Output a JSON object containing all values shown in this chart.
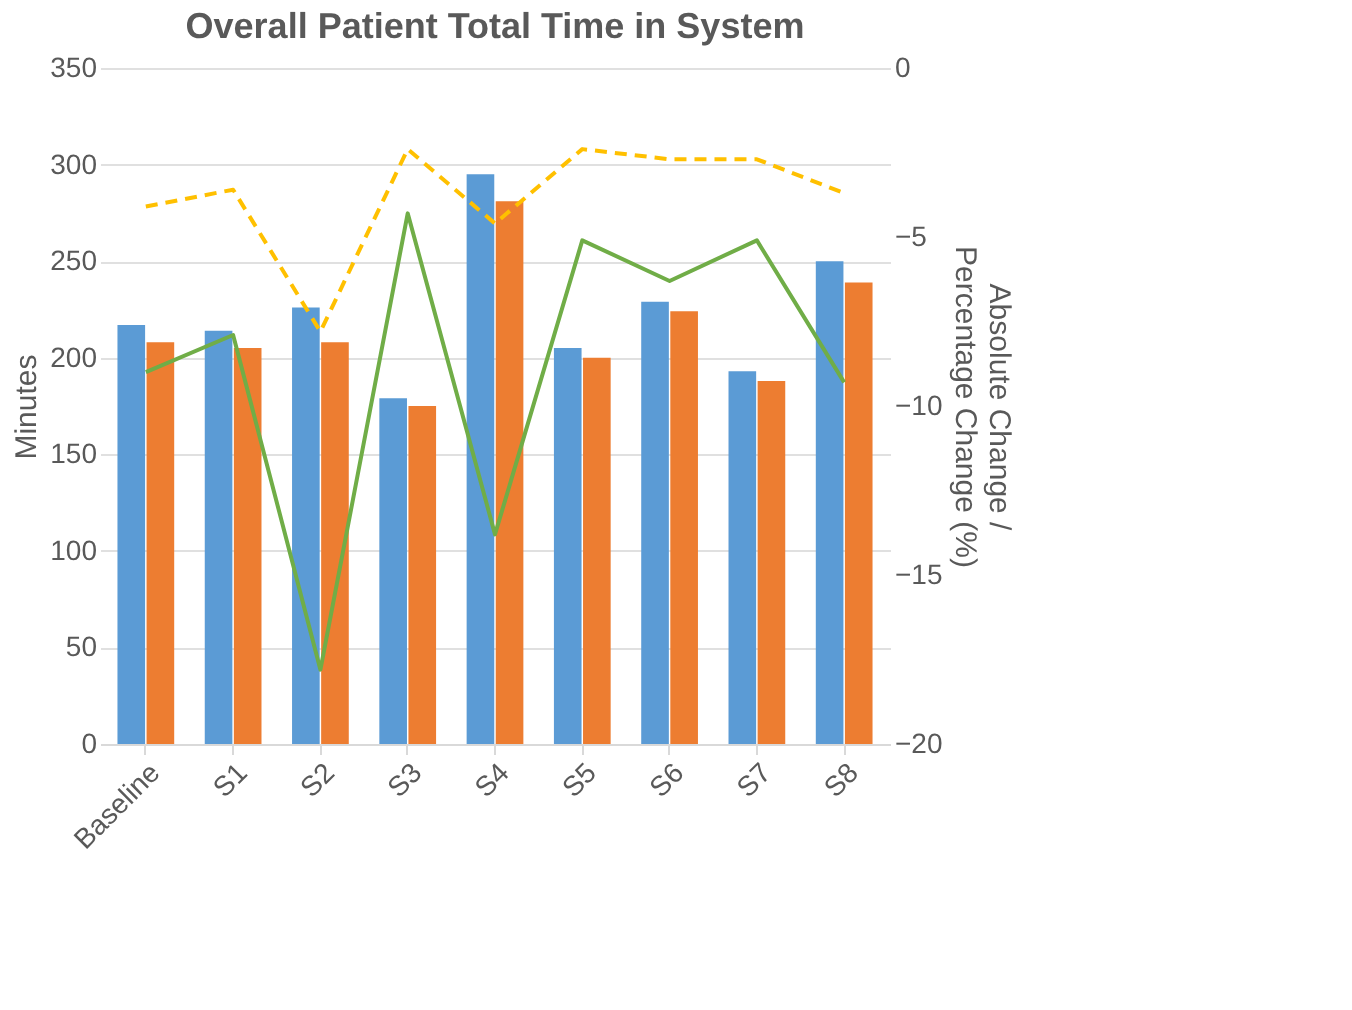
{
  "chart_data": {
    "type": "bar",
    "title": "Overall Patient Total Time in System",
    "ylabel": "Minutes",
    "y2label": [
      "Absolute Change /",
      "Percentage Change (%)"
    ],
    "categories": [
      "Baseline",
      "S1",
      "S2",
      "S3",
      "S4",
      "S5",
      "S6",
      "S7",
      "S8"
    ],
    "series": [
      {
        "color": "#5b9bd5",
        "values": [
          217,
          214,
          226,
          179,
          295,
          205,
          229,
          193,
          250
        ]
      },
      {
        "color": "#ed7d31",
        "values": [
          208,
          205,
          208,
          175,
          281,
          200,
          224,
          188,
          239
        ]
      },
      {
        "type": "line",
        "axis": "y2",
        "color": "#70ad47",
        "line_style": "solid",
        "values": [
          -9.0,
          -7.9,
          -17.8,
          -4.3,
          -13.8,
          -5.1,
          -6.3,
          -5.1,
          -9.3
        ]
      },
      {
        "type": "line",
        "axis": "y2",
        "color": "#ffc000",
        "line_style": "dashed",
        "values": [
          -4.1,
          -3.6,
          -7.8,
          -2.4,
          -4.6,
          -2.4,
          -2.7,
          -2.7,
          -3.7
        ]
      }
    ],
    "ylim": [
      0,
      350
    ],
    "yticks": [
      0,
      50,
      100,
      150,
      200,
      250,
      300,
      350
    ],
    "y2lim": [
      -20,
      0
    ],
    "y2ticks": [
      -20,
      -15,
      -10,
      -5,
      0
    ],
    "grid": "y",
    "legend": false,
    "marker": "none"
  }
}
